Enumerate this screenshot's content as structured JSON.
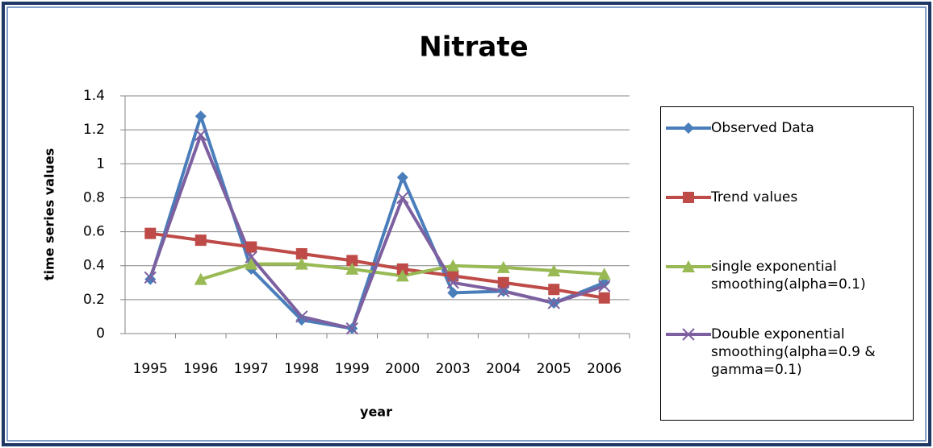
{
  "chart_data": {
    "type": "line",
    "title": "Nitrate",
    "x_label": "year",
    "y_label": "time series values",
    "categories": [
      "1995",
      "1996",
      "1997",
      "1998",
      "1999",
      "2000",
      "2003",
      "2004",
      "2005",
      "2006"
    ],
    "series": [
      {
        "name": "Observed Data",
        "color": "#4a7ebb",
        "marker": "diamond",
        "values": [
          0.32,
          1.28,
          0.38,
          0.08,
          0.03,
          0.92,
          0.24,
          0.25,
          0.18,
          0.3
        ]
      },
      {
        "name": "Trend values",
        "color": "#be4b48",
        "marker": "square",
        "values": [
          0.59,
          0.55,
          0.51,
          0.47,
          0.43,
          0.38,
          0.34,
          0.3,
          0.26,
          0.21
        ]
      },
      {
        "name": "single exponential smoothing(alpha=0.1)",
        "color": "#98b954",
        "marker": "triangle",
        "values": [
          null,
          0.32,
          0.41,
          0.41,
          0.38,
          0.34,
          0.4,
          0.39,
          0.37,
          0.35
        ]
      },
      {
        "name": "Double exponential smoothing(alpha=0.9 & gamma=0.1)",
        "color": "#7d60a0",
        "marker": "x",
        "values": [
          0.33,
          1.17,
          0.45,
          0.1,
          0.03,
          0.8,
          0.3,
          0.25,
          0.18,
          0.28
        ]
      }
    ],
    "ylim": [
      0,
      1.4
    ],
    "yticks": [
      0,
      0.2,
      0.4,
      0.6,
      0.8,
      1,
      1.2,
      1.4
    ],
    "grid": true,
    "legend": "right"
  }
}
